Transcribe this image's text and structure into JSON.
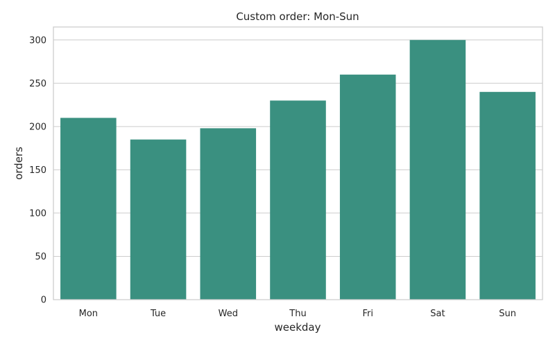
{
  "chart_data": {
    "type": "bar",
    "title": "Custom order: Mon-Sun",
    "xlabel": "weekday",
    "ylabel": "orders",
    "categories": [
      "Mon",
      "Tue",
      "Wed",
      "Thu",
      "Fri",
      "Sat",
      "Sun"
    ],
    "values": [
      210,
      185,
      198,
      230,
      260,
      300,
      240
    ],
    "ylim": [
      0,
      315
    ],
    "yticks": [
      0,
      50,
      100,
      150,
      200,
      250,
      300
    ],
    "grid": true,
    "bar_color": "#3a9080"
  }
}
